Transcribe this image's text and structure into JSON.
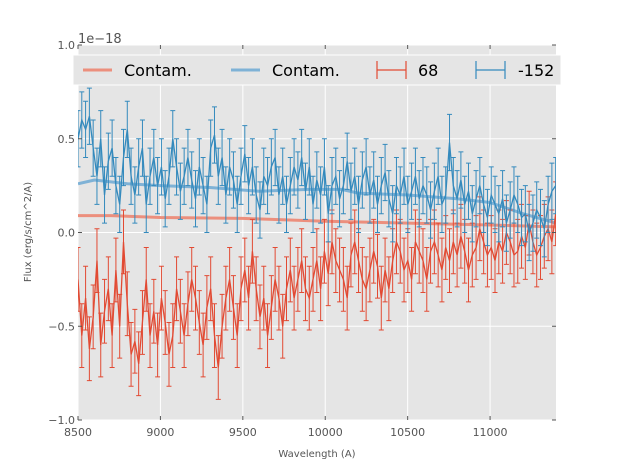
{
  "chart_data": {
    "type": "line",
    "title": "",
    "xlabel": "Wavelength (A)",
    "ylabel": "Flux (erg/s/cm^2/A)",
    "y_offset_label": "1e−18",
    "xlim": [
      8500,
      11400
    ],
    "ylim": [
      -1.0,
      1.0
    ],
    "xticks": [
      8500,
      9000,
      9500,
      10000,
      10500,
      11000
    ],
    "xtick_labels": [
      "8500",
      "9000",
      "9500",
      "10000",
      "10500",
      "11000"
    ],
    "yticks": [
      -1.0,
      -0.5,
      0.0,
      0.5,
      1.0
    ],
    "ytick_labels": [
      "−1.0",
      "−0.5",
      "0.0",
      "0.5",
      "1.0"
    ],
    "grid": true,
    "legend_position": "top",
    "colors": {
      "red": "#e24a33",
      "blue": "#348abd",
      "contam_red": "#ec8f7d",
      "contam_blue": "#7fb2d6",
      "axes_bg": "#e5e5e5",
      "grid": "#ffffff"
    },
    "legend": [
      {
        "label": "Contam.",
        "kind": "line",
        "color": "#ec8f7d"
      },
      {
        "label": "Contam.",
        "kind": "line",
        "color": "#7fb2d6"
      },
      {
        "label": "68",
        "kind": "errorbar",
        "color": "#e24a33"
      },
      {
        "label": "-152",
        "kind": "errorbar",
        "color": "#348abd"
      }
    ],
    "series": [
      {
        "name": "68",
        "kind": "errorbar",
        "color": "#e24a33",
        "x_start": 8500,
        "x_step": 23,
        "y": [
          -0.25,
          -0.55,
          -0.35,
          -0.62,
          -0.45,
          -0.15,
          -0.6,
          -0.42,
          -0.3,
          -0.55,
          -0.2,
          -0.5,
          -0.05,
          -0.38,
          -0.65,
          -0.58,
          -0.7,
          -0.48,
          -0.25,
          -0.55,
          -0.42,
          -0.6,
          -0.35,
          -0.48,
          -0.65,
          -0.55,
          -0.3,
          -0.42,
          -0.55,
          -0.38,
          -0.25,
          -0.35,
          -0.48,
          -0.6,
          -0.4,
          -0.3,
          -0.55,
          -0.72,
          -0.5,
          -0.35,
          -0.25,
          -0.4,
          -0.55,
          -0.3,
          -0.2,
          -0.35,
          -0.1,
          -0.3,
          -0.45,
          -0.35,
          -0.55,
          -0.4,
          -0.25,
          -0.35,
          -0.5,
          -0.3,
          -0.2,
          -0.35,
          -0.25,
          -0.15,
          -0.3,
          -0.35,
          -0.25,
          -0.15,
          -0.3,
          -0.1,
          -0.22,
          -0.05,
          -0.15,
          -0.2,
          -0.25,
          -0.35,
          -0.12,
          -0.05,
          -0.15,
          -0.25,
          -0.3,
          -0.2,
          -0.1,
          -0.18,
          -0.35,
          -0.2,
          -0.3,
          -0.15,
          -0.05,
          -0.1,
          -0.2,
          -0.15,
          -0.25,
          -0.05,
          -0.1,
          -0.15,
          -0.25,
          -0.1,
          -0.05,
          -0.12,
          -0.2,
          -0.08,
          -0.15,
          -0.05,
          -0.12,
          -0.02,
          -0.1,
          -0.2,
          -0.12,
          -0.08,
          0.02,
          -0.05,
          -0.12,
          -0.08,
          -0.15,
          -0.05,
          -0.1,
          0.0,
          -0.05,
          -0.12,
          -0.1,
          -0.02,
          -0.08,
          0.05,
          -0.05,
          -0.12,
          -0.08,
          -0.02,
          0.02,
          -0.05,
          0.1
        ],
        "err": 0.17
      },
      {
        "name": "-152",
        "kind": "errorbar",
        "color": "#348abd",
        "x_start": 8500,
        "x_step": 23,
        "y": [
          0.5,
          0.6,
          0.55,
          0.62,
          0.45,
          0.3,
          0.5,
          0.2,
          0.38,
          0.45,
          0.25,
          0.15,
          0.4,
          0.55,
          0.3,
          0.2,
          0.35,
          0.45,
          0.15,
          0.3,
          0.4,
          0.25,
          0.35,
          0.18,
          0.3,
          0.5,
          0.35,
          0.22,
          0.3,
          0.4,
          0.28,
          0.18,
          0.35,
          0.25,
          0.15,
          0.45,
          0.52,
          0.3,
          0.4,
          0.2,
          0.35,
          0.28,
          0.15,
          0.3,
          0.42,
          0.25,
          0.35,
          0.2,
          0.12,
          0.3,
          0.25,
          0.35,
          0.4,
          0.2,
          0.3,
          0.15,
          0.25,
          0.35,
          0.28,
          0.4,
          0.22,
          0.35,
          0.15,
          0.28,
          0.2,
          0.35,
          0.1,
          0.25,
          0.3,
          0.18,
          0.25,
          0.38,
          0.22,
          0.3,
          0.15,
          0.28,
          0.35,
          0.2,
          0.28,
          0.15,
          0.25,
          0.32,
          0.18,
          0.1,
          0.25,
          0.2,
          0.3,
          0.15,
          0.22,
          0.3,
          0.18,
          0.25,
          0.2,
          0.12,
          0.22,
          0.3,
          0.15,
          0.2,
          0.48,
          0.25,
          0.18,
          0.28,
          0.15,
          0.22,
          0.1,
          0.18,
          0.25,
          0.15,
          0.08,
          0.2,
          0.15,
          0.1,
          0.18,
          0.05,
          0.12,
          0.2,
          0.15,
          0.08,
          0.1,
          0.0,
          0.05,
          0.12,
          0.08,
          0.02,
          0.15,
          0.22,
          0.25
        ],
        "err": 0.15
      },
      {
        "name": "Contam.",
        "kind": "line",
        "color": "#ec8f7d",
        "x": [
          8500,
          8700,
          9000,
          9500,
          10000,
          10500,
          11000,
          11400
        ],
        "y": [
          0.09,
          0.09,
          0.08,
          0.075,
          0.06,
          0.05,
          0.04,
          0.03
        ]
      },
      {
        "name": "Contam.",
        "kind": "line",
        "color": "#7fb2d6",
        "x": [
          8500,
          8600,
          8800,
          9000,
          9300,
          9600,
          9900,
          10100,
          10200,
          10500,
          10800,
          11000,
          11200,
          11400
        ],
        "y": [
          0.26,
          0.28,
          0.26,
          0.25,
          0.24,
          0.22,
          0.23,
          0.23,
          0.21,
          0.2,
          0.18,
          0.16,
          0.1,
          0.05
        ]
      }
    ]
  }
}
